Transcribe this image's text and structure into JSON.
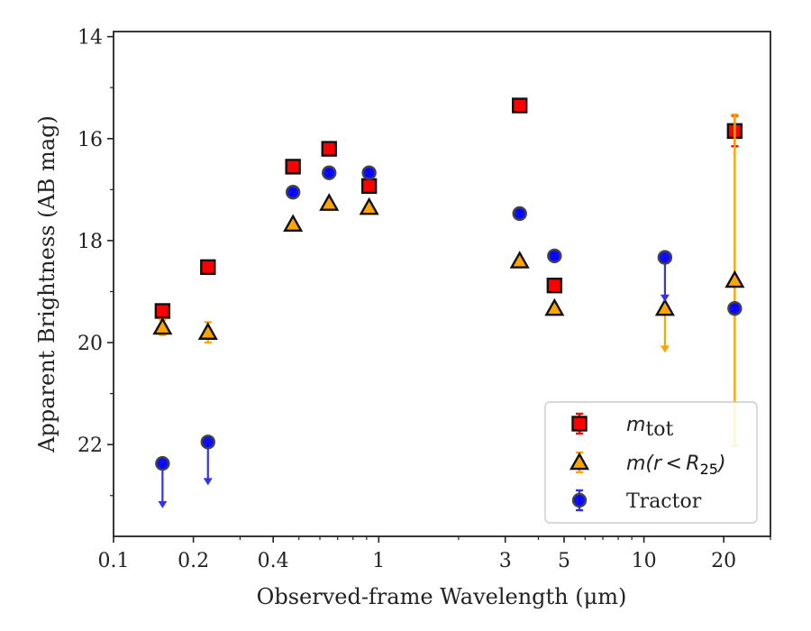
{
  "chart_data": {
    "type": "scatter",
    "xlabel": "Observed-frame Wavelength (μm)",
    "ylabel": "Apparent Brightness (AB mag)",
    "x_scale": "log",
    "y_inverted": true,
    "xlim": [
      0.1,
      30
    ],
    "ylim": [
      23.8,
      13.9
    ],
    "x_ticks": [
      {
        "value": 0.1,
        "label": "0.1"
      },
      {
        "value": 0.2,
        "label": "0.2"
      },
      {
        "value": 0.4,
        "label": "0.4"
      },
      {
        "value": 1,
        "label": "1"
      },
      {
        "value": 3,
        "label": "3"
      },
      {
        "value": 5,
        "label": "5"
      },
      {
        "value": 10,
        "label": "10"
      },
      {
        "value": 20,
        "label": "20"
      }
    ],
    "y_ticks": [
      {
        "value": 14,
        "label": "14"
      },
      {
        "value": 16,
        "label": "16"
      },
      {
        "value": 18,
        "label": "18"
      },
      {
        "value": 20,
        "label": "20"
      },
      {
        "value": 22,
        "label": "22"
      }
    ],
    "legend": {
      "position": "lower-right",
      "entries": [
        {
          "series": 0,
          "label": "m_tot"
        },
        {
          "series": 1,
          "label": "m(r < R_25)"
        },
        {
          "series": 2,
          "label": "Tractor"
        }
      ]
    },
    "series": [
      {
        "name": "m_tot",
        "marker": "square",
        "color": "#ff0000",
        "errcolor": "#ff0000",
        "points": [
          {
            "x": 0.153,
            "y": 19.38,
            "err": 0.08
          },
          {
            "x": 0.227,
            "y": 18.52,
            "err": 0.05
          },
          {
            "x": 0.475,
            "y": 16.55,
            "err": 0.04
          },
          {
            "x": 0.65,
            "y": 16.2,
            "err": 0.04
          },
          {
            "x": 0.92,
            "y": 16.93,
            "err": 0.05
          },
          {
            "x": 3.4,
            "y": 15.35,
            "err": 0.05
          },
          {
            "x": 4.6,
            "y": 18.88,
            "err": 0.1
          },
          {
            "x": 22,
            "y": 15.85,
            "err": 0.3
          }
        ]
      },
      {
        "name": "m(r < R_25)",
        "marker": "triangle",
        "color": "#ffa500",
        "errcolor": "#ffa500",
        "points": [
          {
            "x": 0.153,
            "y": 19.7,
            "err": 0.15
          },
          {
            "x": 0.227,
            "y": 19.8,
            "err": 0.2
          },
          {
            "x": 0.475,
            "y": 17.68,
            "err": 0.04
          },
          {
            "x": 0.65,
            "y": 17.27,
            "err": 0.04
          },
          {
            "x": 0.92,
            "y": 17.35,
            "err": 0.05
          },
          {
            "x": 3.4,
            "y": 18.4,
            "err": 0.05
          },
          {
            "x": 4.6,
            "y": 19.33,
            "err": 0.08
          },
          {
            "x": 12.0,
            "y": 19.33,
            "upper_limit_to": 20.2
          },
          {
            "x": 22,
            "y": 18.78,
            "err": 3.25
          }
        ]
      },
      {
        "name": "Tractor",
        "marker": "circle",
        "color": "#0000ff",
        "errcolor": "#3333ee",
        "points": [
          {
            "x": 0.153,
            "y": 22.37,
            "upper_limit_to": 23.25
          },
          {
            "x": 0.227,
            "y": 21.95,
            "upper_limit_to": 22.8
          },
          {
            "x": 0.475,
            "y": 17.05,
            "err": 0.05
          },
          {
            "x": 0.65,
            "y": 16.67,
            "err": 0.05
          },
          {
            "x": 0.92,
            "y": 16.67,
            "err": 0.05
          },
          {
            "x": 3.4,
            "y": 17.47,
            "err": 0.05
          },
          {
            "x": 4.6,
            "y": 18.3,
            "err": 0.05
          },
          {
            "x": 12.0,
            "y": 18.33,
            "upper_limit_to": 19.2
          },
          {
            "x": 22,
            "y": 19.33,
            "err": 0.05
          }
        ]
      }
    ]
  }
}
